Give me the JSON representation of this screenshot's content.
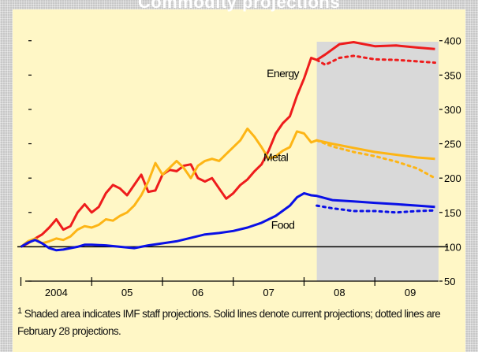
{
  "title": "Commodity projections",
  "footnote": {
    "marker": "1",
    "text": "Shaded area indicates IMF staff projections. Solid lines denote current projections; dotted lines are February 28 projections."
  },
  "chart_data": {
    "type": "line",
    "title": "",
    "xlabel": "",
    "ylabel": "",
    "ylim": [
      50,
      410
    ],
    "xlim": [
      2003.95,
      2009.9
    ],
    "y_ticks": [
      50,
      100,
      150,
      200,
      250,
      300,
      350,
      400
    ],
    "x_tick_labels": [
      {
        "label": "2004",
        "x": 2004.5
      },
      {
        "label": "05",
        "x": 2005.5
      },
      {
        "label": "06",
        "x": 2006.5
      },
      {
        "label": "07",
        "x": 2007.5
      },
      {
        "label": "08",
        "x": 2008.5
      },
      {
        "label": "09",
        "x": 2009.5
      }
    ],
    "reference_line": 100,
    "projection_start": 2008.18,
    "colors": {
      "energy": "#ee1c1c",
      "metal": "#fdb515",
      "food": "#0a10e6",
      "shade": "#d9d9d9"
    },
    "series": [
      {
        "name": "Energy",
        "key": "energy",
        "points": [
          [
            2004.0,
            100
          ],
          [
            2004.1,
            105
          ],
          [
            2004.2,
            112
          ],
          [
            2004.3,
            118
          ],
          [
            2004.4,
            128
          ],
          [
            2004.5,
            140
          ],
          [
            2004.6,
            125
          ],
          [
            2004.7,
            130
          ],
          [
            2004.8,
            150
          ],
          [
            2004.9,
            162
          ],
          [
            2005.0,
            150
          ],
          [
            2005.1,
            158
          ],
          [
            2005.2,
            178
          ],
          [
            2005.3,
            190
          ],
          [
            2005.4,
            185
          ],
          [
            2005.5,
            175
          ],
          [
            2005.6,
            190
          ],
          [
            2005.7,
            205
          ],
          [
            2005.8,
            180
          ],
          [
            2005.9,
            182
          ],
          [
            2006.0,
            205
          ],
          [
            2006.1,
            212
          ],
          [
            2006.2,
            210
          ],
          [
            2006.3,
            218
          ],
          [
            2006.4,
            220
          ],
          [
            2006.5,
            200
          ],
          [
            2006.6,
            195
          ],
          [
            2006.7,
            200
          ],
          [
            2006.8,
            185
          ],
          [
            2006.9,
            170
          ],
          [
            2007.0,
            178
          ],
          [
            2007.1,
            190
          ],
          [
            2007.2,
            198
          ],
          [
            2007.3,
            210
          ],
          [
            2007.4,
            220
          ],
          [
            2007.5,
            240
          ],
          [
            2007.6,
            265
          ],
          [
            2007.7,
            280
          ],
          [
            2007.8,
            290
          ],
          [
            2007.9,
            320
          ],
          [
            2008.0,
            345
          ],
          [
            2008.1,
            375
          ],
          [
            2008.18,
            372
          ],
          [
            2008.3,
            380
          ],
          [
            2008.5,
            395
          ],
          [
            2008.7,
            398
          ],
          [
            2009.0,
            392
          ],
          [
            2009.3,
            393
          ],
          [
            2009.6,
            390
          ],
          [
            2009.85,
            388
          ]
        ],
        "projection_prev": [
          [
            2008.18,
            372
          ],
          [
            2008.3,
            365
          ],
          [
            2008.5,
            375
          ],
          [
            2008.7,
            378
          ],
          [
            2009.0,
            373
          ],
          [
            2009.3,
            372
          ],
          [
            2009.6,
            370
          ],
          [
            2009.85,
            368
          ]
        ],
        "label_pos": [
          2007.7,
          347
        ]
      },
      {
        "name": "Metal",
        "key": "metal",
        "points": [
          [
            2004.0,
            100
          ],
          [
            2004.1,
            108
          ],
          [
            2004.2,
            112
          ],
          [
            2004.3,
            105
          ],
          [
            2004.4,
            108
          ],
          [
            2004.5,
            112
          ],
          [
            2004.6,
            110
          ],
          [
            2004.7,
            115
          ],
          [
            2004.8,
            125
          ],
          [
            2004.9,
            130
          ],
          [
            2005.0,
            128
          ],
          [
            2005.1,
            132
          ],
          [
            2005.2,
            140
          ],
          [
            2005.3,
            138
          ],
          [
            2005.4,
            145
          ],
          [
            2005.5,
            150
          ],
          [
            2005.6,
            160
          ],
          [
            2005.7,
            175
          ],
          [
            2005.8,
            195
          ],
          [
            2005.9,
            222
          ],
          [
            2006.0,
            205
          ],
          [
            2006.1,
            215
          ],
          [
            2006.2,
            225
          ],
          [
            2006.3,
            215
          ],
          [
            2006.4,
            200
          ],
          [
            2006.5,
            218
          ],
          [
            2006.6,
            225
          ],
          [
            2006.7,
            228
          ],
          [
            2006.8,
            225
          ],
          [
            2006.9,
            235
          ],
          [
            2007.0,
            245
          ],
          [
            2007.1,
            255
          ],
          [
            2007.2,
            272
          ],
          [
            2007.3,
            260
          ],
          [
            2007.4,
            245
          ],
          [
            2007.5,
            228
          ],
          [
            2007.6,
            232
          ],
          [
            2007.7,
            240
          ],
          [
            2007.8,
            245
          ],
          [
            2007.9,
            268
          ],
          [
            2008.0,
            265
          ],
          [
            2008.1,
            252
          ],
          [
            2008.18,
            255
          ],
          [
            2008.4,
            250
          ],
          [
            2008.7,
            244
          ],
          [
            2009.0,
            238
          ],
          [
            2009.3,
            234
          ],
          [
            2009.6,
            230
          ],
          [
            2009.85,
            228
          ]
        ],
        "projection_prev": [
          [
            2008.18,
            255
          ],
          [
            2008.4,
            246
          ],
          [
            2008.7,
            238
          ],
          [
            2009.0,
            232
          ],
          [
            2009.3,
            224
          ],
          [
            2009.6,
            214
          ],
          [
            2009.85,
            200
          ]
        ],
        "label_pos": [
          2007.6,
          225
        ]
      },
      {
        "name": "Food",
        "key": "food",
        "points": [
          [
            2004.0,
            100
          ],
          [
            2004.1,
            106
          ],
          [
            2004.2,
            110
          ],
          [
            2004.3,
            105
          ],
          [
            2004.4,
            98
          ],
          [
            2004.5,
            95
          ],
          [
            2004.6,
            96
          ],
          [
            2004.7,
            98
          ],
          [
            2004.8,
            100
          ],
          [
            2004.9,
            103
          ],
          [
            2005.0,
            103
          ],
          [
            2005.2,
            102
          ],
          [
            2005.4,
            100
          ],
          [
            2005.6,
            98
          ],
          [
            2005.8,
            102
          ],
          [
            2006.0,
            105
          ],
          [
            2006.2,
            108
          ],
          [
            2006.4,
            113
          ],
          [
            2006.6,
            118
          ],
          [
            2006.8,
            120
          ],
          [
            2007.0,
            123
          ],
          [
            2007.2,
            128
          ],
          [
            2007.4,
            135
          ],
          [
            2007.6,
            145
          ],
          [
            2007.8,
            160
          ],
          [
            2007.9,
            172
          ],
          [
            2008.0,
            178
          ],
          [
            2008.1,
            175
          ],
          [
            2008.18,
            174
          ],
          [
            2008.4,
            168
          ],
          [
            2008.7,
            166
          ],
          [
            2009.0,
            164
          ],
          [
            2009.3,
            162
          ],
          [
            2009.6,
            160
          ],
          [
            2009.85,
            158
          ]
        ],
        "projection_prev": [
          [
            2008.18,
            160
          ],
          [
            2008.4,
            156
          ],
          [
            2008.7,
            152
          ],
          [
            2009.0,
            152
          ],
          [
            2009.3,
            150
          ],
          [
            2009.6,
            152
          ],
          [
            2009.85,
            153
          ]
        ],
        "label_pos": [
          2007.7,
          126
        ]
      }
    ]
  }
}
